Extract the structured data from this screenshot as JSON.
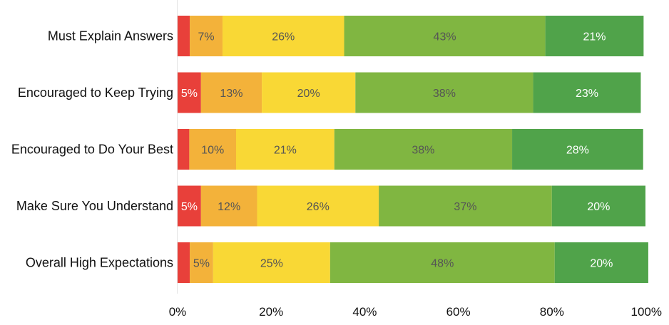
{
  "chart_data": {
    "type": "bar",
    "orientation": "horizontal",
    "stacked": true,
    "title": "",
    "xlabel": "",
    "ylabel": "",
    "xlim": [
      0,
      100
    ],
    "x_ticks": [
      "0%",
      "20%",
      "40%",
      "60%",
      "80%",
      "100%"
    ],
    "grid": false,
    "legend": "none",
    "categories": [
      "Must Explain Answers",
      "Encouraged to Keep Trying",
      "Encouraged to Do Your Best",
      "Make Sure You Understand",
      "Overall High Expectations"
    ],
    "series": [
      {
        "color": "#e8403a",
        "label_color": "#ffffff",
        "values": [
          2.6,
          5,
          2.5,
          5,
          2.6
        ],
        "labels": [
          "",
          "5%",
          "",
          "5%",
          ""
        ]
      },
      {
        "color": "#f3b23a",
        "label_color": "#555555",
        "values": [
          7,
          13,
          10,
          12,
          5
        ],
        "labels": [
          "7%",
          "13%",
          "10%",
          "12%",
          "5%"
        ]
      },
      {
        "color": "#f9d835",
        "label_color": "#555555",
        "values": [
          26,
          20,
          21,
          26,
          25
        ],
        "labels": [
          "26%",
          "20%",
          "21%",
          "26%",
          "25%"
        ]
      },
      {
        "color": "#80b641",
        "label_color": "#555555",
        "values": [
          43,
          38,
          38,
          37,
          48
        ],
        "labels": [
          "43%",
          "38%",
          "38%",
          "37%",
          "48%"
        ]
      },
      {
        "color": "#50a34a",
        "label_color": "#ffffff",
        "values": [
          21,
          23,
          28,
          20,
          20
        ],
        "labels": [
          "21%",
          "23%",
          "28%",
          "20%",
          "20%"
        ]
      }
    ]
  }
}
